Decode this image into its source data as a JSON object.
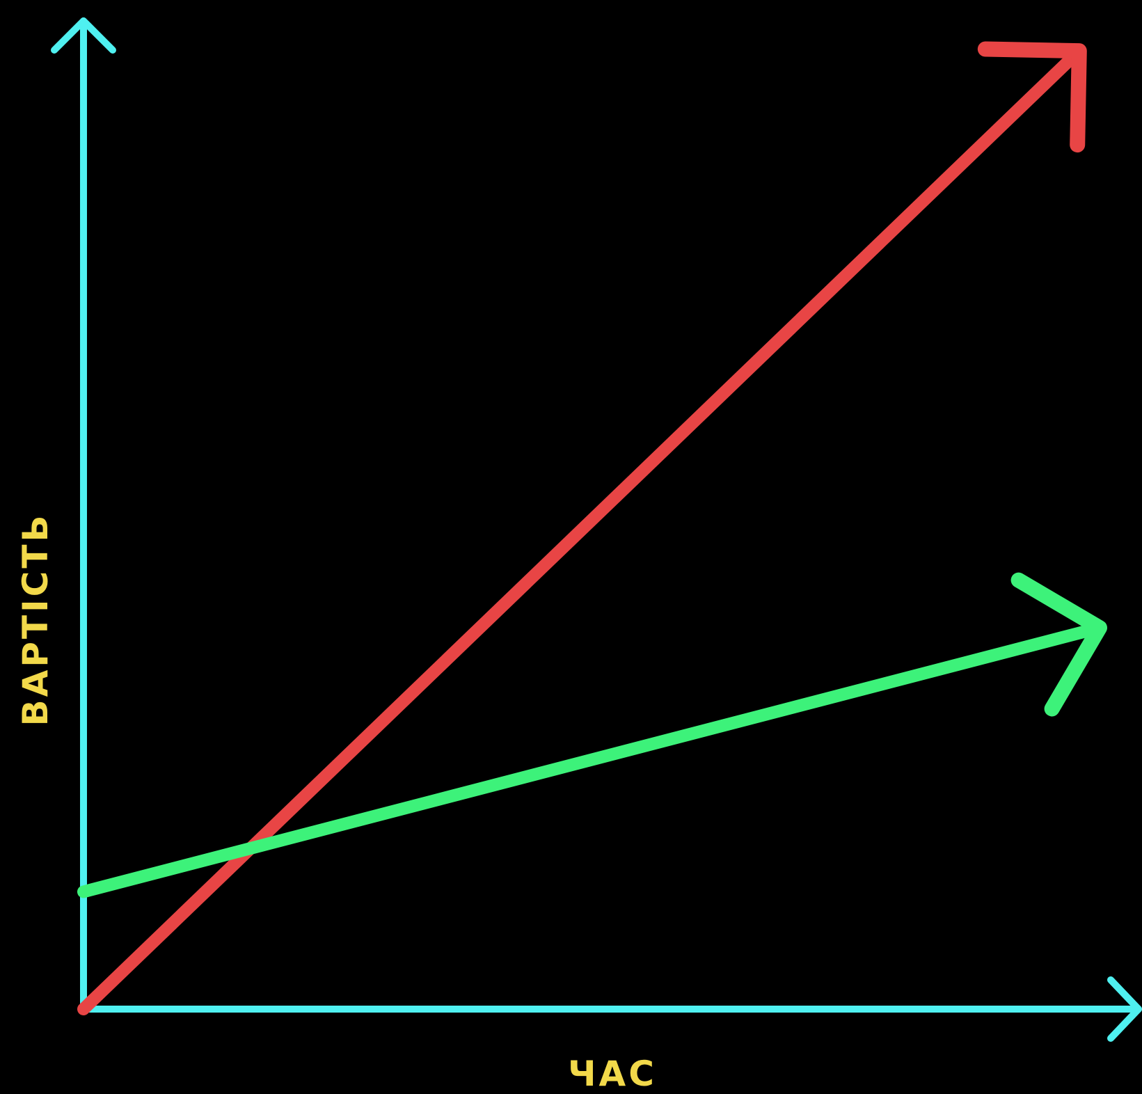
{
  "chart_data": {
    "type": "line",
    "title": "",
    "xlabel": "ЧАС",
    "ylabel": "ВАРТІСТЬ",
    "xlim": [
      0,
      100
    ],
    "ylim": [
      0,
      100
    ],
    "grid": false,
    "legend": "none",
    "series": [
      {
        "color": "#e84545",
        "x": [
          0,
          98
        ],
        "y": [
          0,
          98
        ]
      },
      {
        "color": "#3df27a",
        "x": [
          0,
          100
        ],
        "y": [
          12,
          39
        ]
      }
    ],
    "axis_color": "#4ff0f0",
    "label_color": "#f2d94a",
    "background": "#000000"
  }
}
